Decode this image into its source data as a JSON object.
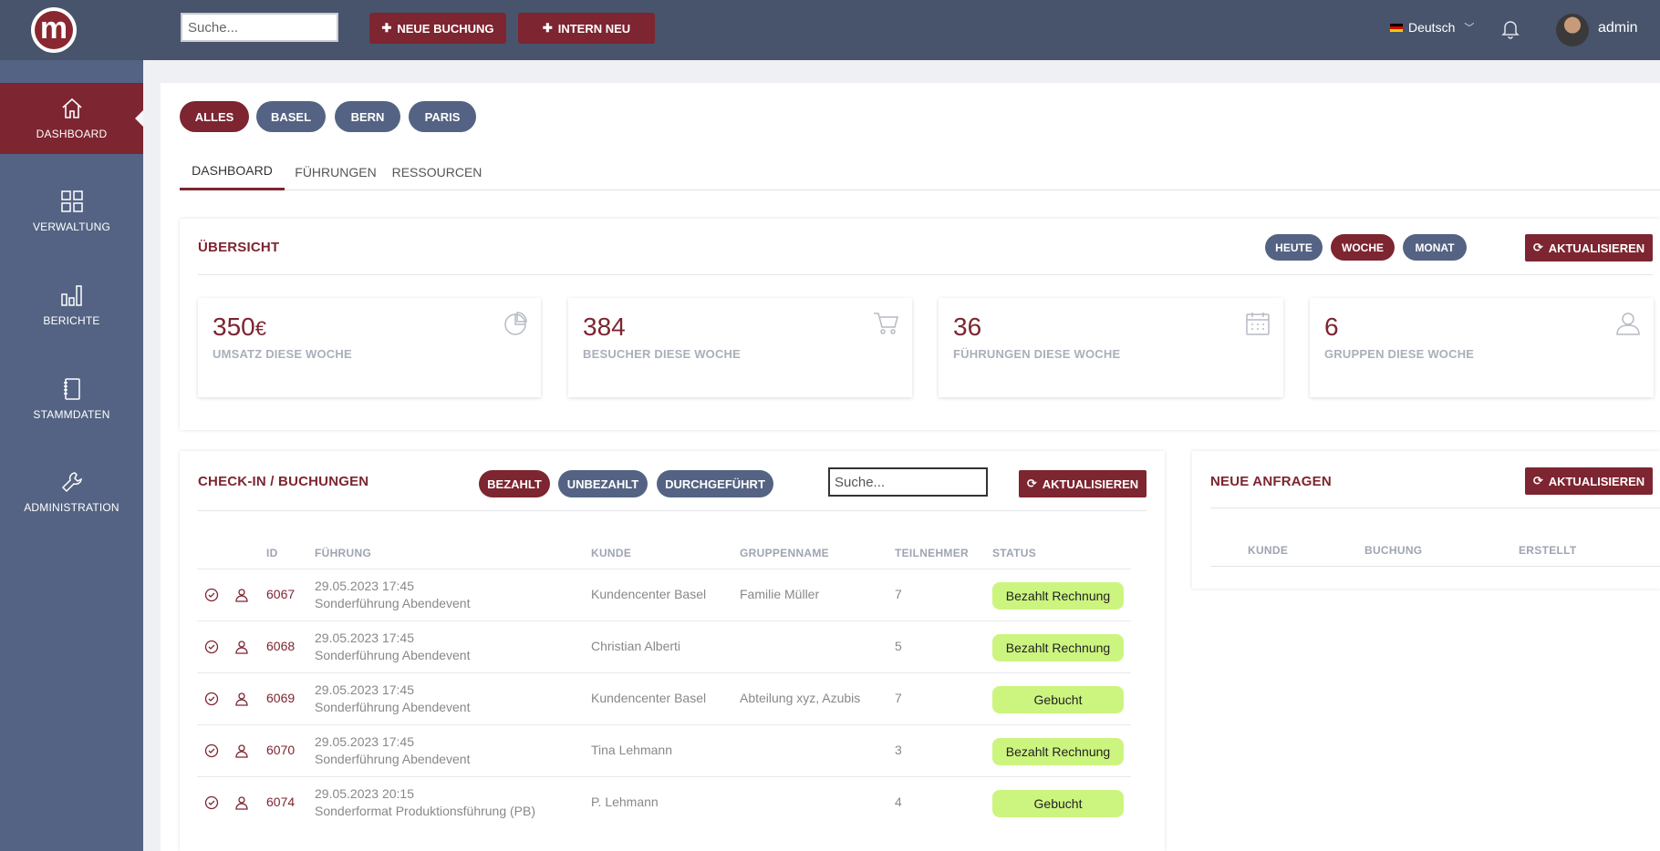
{
  "header": {
    "logo_letter": "m",
    "search_placeholder": "Suche...",
    "new_booking_label": "NEUE BUCHUNG",
    "intern_new_label": "INTERN NEU",
    "language": "Deutsch",
    "user_name": "admin"
  },
  "sidebar": {
    "items": [
      {
        "label": "DASHBOARD",
        "icon": "home-icon",
        "active": true
      },
      {
        "label": "VERWALTUNG",
        "icon": "grid-icon",
        "active": false
      },
      {
        "label": "BERICHTE",
        "icon": "bar-chart-icon",
        "active": false
      },
      {
        "label": "STAMMDATEN",
        "icon": "notebook-icon",
        "active": false
      },
      {
        "label": "ADMINISTRATION",
        "icon": "wrench-icon",
        "active": false
      }
    ]
  },
  "location_filters": [
    "ALLES",
    "BASEL",
    "BERN",
    "PARIS"
  ],
  "tabs": [
    "DASHBOARD",
    "FÜHRUNGEN",
    "RESSOURCEN"
  ],
  "overview": {
    "title": "ÜBERSICHT",
    "periods": [
      "HEUTE",
      "WOCHE",
      "MONAT"
    ],
    "refresh_label": "AKTUALISIEREN",
    "stats": [
      {
        "value": "350",
        "currency": "€",
        "label": "UMSATZ DIESE WOCHE",
        "icon": "pie-chart-icon"
      },
      {
        "value": "384",
        "currency": "",
        "label": "BESUCHER DIESE WOCHE",
        "icon": "cart-icon"
      },
      {
        "value": "36",
        "currency": "",
        "label": "FÜHRUNGEN DIESE WOCHE",
        "icon": "calendar-icon"
      },
      {
        "value": "6",
        "currency": "",
        "label": "GRUPPEN DIESE WOCHE",
        "icon": "user-icon"
      }
    ]
  },
  "checkin": {
    "title": "CHECK-IN / BUCHUNGEN",
    "filters": [
      "BEZAHLT",
      "UNBEZAHLT",
      "DURCHGEFÜHRT"
    ],
    "search_placeholder": "Suche...",
    "refresh_label": "AKTUALISIEREN",
    "columns": [
      "ID",
      "FÜHRUNG",
      "KUNDE",
      "GRUPPENNAME",
      "TEILNEHMER",
      "STATUS"
    ],
    "rows": [
      {
        "id": "6067",
        "datetime": "29.05.2023 17:45",
        "tour": "Sonderführung Abendevent",
        "customer": "Kundencenter Basel",
        "group": "Familie Müller",
        "participants": "7",
        "status": "Bezahlt Rechnung"
      },
      {
        "id": "6068",
        "datetime": "29.05.2023 17:45",
        "tour": "Sonderführung Abendevent",
        "customer": "Christian Alberti",
        "group": "",
        "participants": "5",
        "status": "Bezahlt Rechnung"
      },
      {
        "id": "6069",
        "datetime": "29.05.2023 17:45",
        "tour": "Sonderführung Abendevent",
        "customer": "Kundencenter Basel",
        "group": "Abteilung xyz, Azubis",
        "participants": "7",
        "status": "Gebucht"
      },
      {
        "id": "6070",
        "datetime": "29.05.2023 17:45",
        "tour": "Sonderführung Abendevent",
        "customer": "Tina Lehmann",
        "group": "",
        "participants": "3",
        "status": "Bezahlt Rechnung"
      },
      {
        "id": "6074",
        "datetime": "29.05.2023 20:15",
        "tour": "Sonderformat Produktionsführung (PB)",
        "customer": "P. Lehmann",
        "group": "",
        "participants": "4",
        "status": "Gebucht"
      }
    ]
  },
  "requests": {
    "title": "NEUE ANFRAGEN",
    "refresh_label": "AKTUALISIEREN",
    "columns": [
      "KUNDE",
      "BUCHUNG",
      "ERSTELLT"
    ]
  }
}
